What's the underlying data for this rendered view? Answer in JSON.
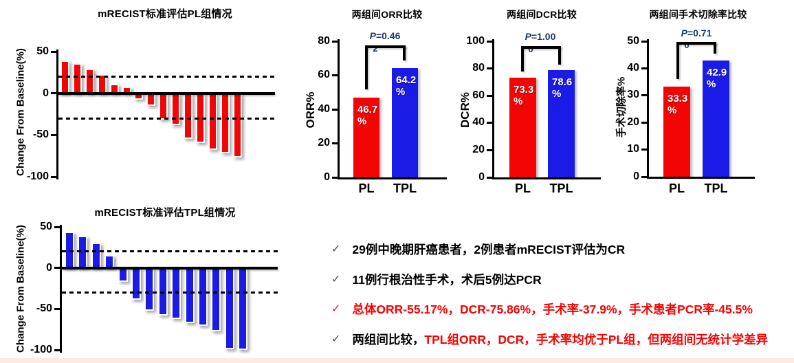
{
  "colors": {
    "red": "#F40505",
    "blue": "#1B1BE8",
    "p_text": "#1F3864",
    "check_dark": "#44546A",
    "check_red": "#E8112D",
    "bullet_black": "#000000",
    "bullet_red": "#FA0000",
    "footer_strip": "#FBEBE2"
  },
  "chart_data": [
    {
      "id": "pl_waterfall",
      "type": "bar",
      "subtype": "waterfall",
      "title": "mRECIST标准评估PL组情况",
      "ylabel": "Change From Baseline(%)",
      "ylim": [
        -100,
        50
      ],
      "yticks": [
        50,
        0,
        -50,
        -100
      ],
      "reference_lines": [
        20,
        -30
      ],
      "grid": false,
      "bar_color": "#F40505",
      "values": [
        39,
        36,
        29,
        23,
        11,
        8,
        -8,
        -15,
        -32,
        -38,
        -55,
        -60,
        -68,
        -72,
        -77
      ]
    },
    {
      "id": "tpl_waterfall",
      "type": "bar",
      "subtype": "waterfall",
      "title": "mRECIST标准评估TPL组情况",
      "ylabel": "Change From Baseline(%)",
      "ylim": [
        -100,
        50
      ],
      "yticks": [
        50,
        0,
        -50,
        -100
      ],
      "reference_lines": [
        20,
        -30
      ],
      "grid": false,
      "bar_color": "#1B1BE8",
      "values": [
        44,
        39,
        31,
        16,
        -17,
        -39,
        -52,
        -58,
        -62,
        -67,
        -71,
        -77,
        -99,
        -100
      ]
    },
    {
      "id": "orr",
      "type": "bar",
      "title": "两组间ORR比较",
      "ylabel": "ORR%",
      "ylim": [
        0,
        80
      ],
      "ystep": 20,
      "grid": false,
      "categories": [
        "PL",
        "TPL"
      ],
      "values": [
        46.7,
        64.2
      ],
      "value_labels": [
        "46.7",
        "64.2"
      ],
      "unit": "%",
      "bar_colors": [
        "#F40505",
        "#1B1BE8"
      ],
      "p_label": "P=0.46",
      "p_label_wrap": "2"
    },
    {
      "id": "dcr",
      "type": "bar",
      "title": "两组间DCR比较",
      "ylabel": "DCR%",
      "ylim": [
        0,
        100
      ],
      "ystep": 20,
      "grid": false,
      "categories": [
        "PL",
        "TPL"
      ],
      "values": [
        73.3,
        78.6
      ],
      "value_labels": [
        "73.3",
        "78.6"
      ],
      "unit": "%",
      "bar_colors": [
        "#F40505",
        "#1B1BE8"
      ],
      "p_label": "P=1.00",
      "p_label_wrap": "0"
    },
    {
      "id": "resection",
      "type": "bar",
      "title": "两组间手术切除率比较",
      "ylabel": "手术切除率%",
      "ylim": [
        0,
        50
      ],
      "ystep": 10,
      "grid": false,
      "categories": [
        "PL",
        "TPL"
      ],
      "values": [
        33.3,
        42.9
      ],
      "value_labels": [
        "33.3",
        "42.9"
      ],
      "unit": "%",
      "bar_colors": [
        "#F40505",
        "#1B1BE8"
      ],
      "p_label": "P=0.71",
      "p_label_wrap": "0"
    }
  ],
  "bullets": [
    {
      "check": "✓",
      "check_color": "#44546A",
      "segments": [
        {
          "text": "29例中晚期肝癌患者，2例患者mRECIST评估为CR",
          "color": "#000000"
        }
      ]
    },
    {
      "check": "✓",
      "check_color": "#44546A",
      "segments": [
        {
          "text": "11例行根治性手术，术后5例达PCR",
          "color": "#000000"
        }
      ]
    },
    {
      "check": "✓",
      "check_color": "#E8112D",
      "segments": [
        {
          "text": "总体ORR-55.17%，DCR-75.86%，手术率-37.9%，手术患者PCR率-45.5%",
          "color": "#FA0000"
        }
      ]
    },
    {
      "check": "✓",
      "check_color": "#44546A",
      "segments": [
        {
          "text": "两组间比较，",
          "color": "#000000"
        },
        {
          "text": "TPL组ORR，DCR，手术率均优于PL组，但两组间无统计学差异",
          "color": "#FA0000"
        }
      ]
    }
  ]
}
